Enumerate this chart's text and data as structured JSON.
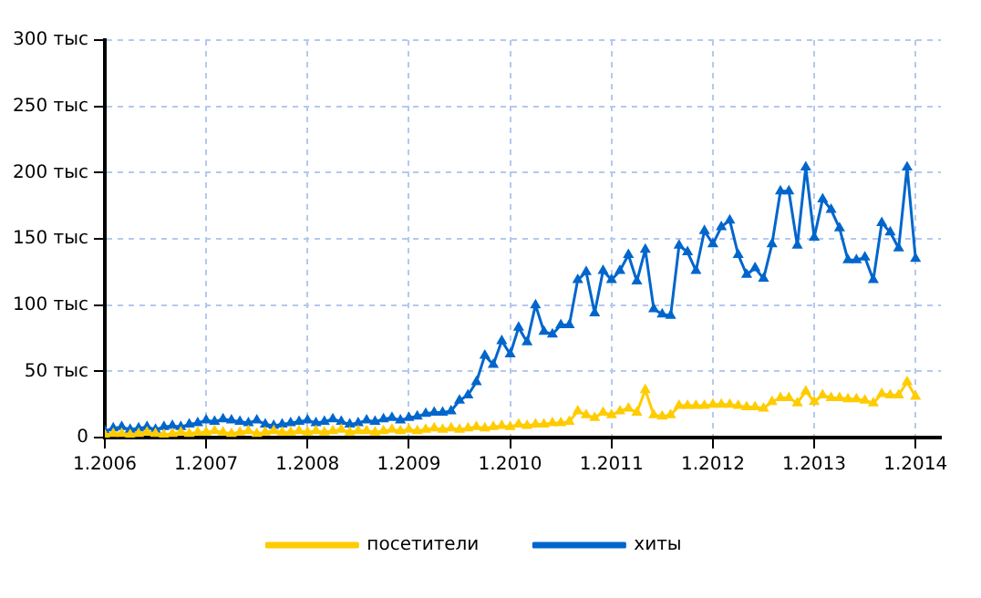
{
  "chart_data": {
    "type": "line",
    "marker": "triangle",
    "line_style": "solid",
    "grid": true,
    "legend": "bottom",
    "xlim": [
      "2006-01",
      "2014-04"
    ],
    "xticks": [
      {
        "value": "2006-01",
        "label": "1.2006"
      },
      {
        "value": "2007-01",
        "label": "1.2007"
      },
      {
        "value": "2008-01",
        "label": "1.2008"
      },
      {
        "value": "2009-01",
        "label": "1.2009"
      },
      {
        "value": "2010-01",
        "label": "1.2010"
      },
      {
        "value": "2011-01",
        "label": "1.2011"
      },
      {
        "value": "2012-01",
        "label": "1.2012"
      },
      {
        "value": "2013-01",
        "label": "1.2013"
      },
      {
        "value": "2014-01",
        "label": "1.2014"
      }
    ],
    "ylim": [
      0,
      300
    ],
    "yticks": [
      {
        "value": 0,
        "label": "0"
      },
      {
        "value": 50,
        "label": "50 тыс"
      },
      {
        "value": 100,
        "label": "100 тыс"
      },
      {
        "value": 150,
        "label": "150 тыс"
      },
      {
        "value": 200,
        "label": "200 тыс"
      },
      {
        "value": 250,
        "label": "250 тыс"
      },
      {
        "value": 300,
        "label": "300 тыс"
      }
    ],
    "x": [
      "2006-01",
      "2006-02",
      "2006-03",
      "2006-04",
      "2006-05",
      "2006-06",
      "2006-07",
      "2006-08",
      "2006-09",
      "2006-10",
      "2006-11",
      "2006-12",
      "2007-01",
      "2007-02",
      "2007-03",
      "2007-04",
      "2007-05",
      "2007-06",
      "2007-07",
      "2007-08",
      "2007-09",
      "2007-10",
      "2007-11",
      "2007-12",
      "2008-01",
      "2008-02",
      "2008-03",
      "2008-04",
      "2008-05",
      "2008-06",
      "2008-07",
      "2008-08",
      "2008-09",
      "2008-10",
      "2008-11",
      "2008-12",
      "2009-01",
      "2009-02",
      "2009-03",
      "2009-04",
      "2009-05",
      "2009-06",
      "2009-07",
      "2009-08",
      "2009-09",
      "2009-10",
      "2009-11",
      "2009-12",
      "2010-01",
      "2010-02",
      "2010-03",
      "2010-04",
      "2010-05",
      "2010-06",
      "2010-07",
      "2010-08",
      "2010-09",
      "2010-10",
      "2010-11",
      "2010-12",
      "2011-01",
      "2011-02",
      "2011-03",
      "2011-04",
      "2011-05",
      "2011-06",
      "2011-07",
      "2011-08",
      "2011-09",
      "2011-10",
      "2011-11",
      "2011-12",
      "2012-01",
      "2012-02",
      "2012-03",
      "2012-04",
      "2012-05",
      "2012-06",
      "2012-07",
      "2012-08",
      "2012-09",
      "2012-10",
      "2012-11",
      "2012-12",
      "2013-01",
      "2013-02",
      "2013-03",
      "2013-04",
      "2013-05",
      "2013-06",
      "2013-07",
      "2013-08",
      "2013-09",
      "2013-10",
      "2013-11",
      "2013-12",
      "2014-01"
    ],
    "series": [
      {
        "name": "посетители",
        "color": "#ffcc00",
        "values": [
          2,
          3,
          3,
          2,
          3,
          4,
          3,
          2,
          3,
          4,
          3,
          4,
          4,
          5,
          4,
          3,
          4,
          5,
          3,
          4,
          5,
          4,
          4,
          5,
          4,
          5,
          4,
          5,
          6,
          4,
          5,
          5,
          4,
          5,
          6,
          5,
          6,
          5,
          6,
          7,
          6,
          7,
          6,
          7,
          8,
          7,
          8,
          9,
          8,
          10,
          9,
          10,
          10,
          11,
          11,
          12,
          20,
          17,
          15,
          19,
          17,
          20,
          22,
          19,
          36,
          17,
          16,
          17,
          24,
          24,
          24,
          24,
          25,
          25,
          25,
          24,
          23,
          23,
          22,
          27,
          30,
          30,
          26,
          35,
          27,
          32,
          30,
          30,
          29,
          29,
          28,
          26,
          33,
          32,
          32,
          42,
          31
        ]
      },
      {
        "name": "хиты",
        "color": "#0066cc",
        "values": [
          5,
          7,
          8,
          6,
          7,
          8,
          6,
          8,
          9,
          8,
          10,
          11,
          13,
          12,
          14,
          13,
          12,
          11,
          13,
          10,
          9,
          10,
          11,
          12,
          13,
          11,
          12,
          14,
          12,
          10,
          11,
          13,
          12,
          14,
          15,
          13,
          15,
          16,
          18,
          19,
          19,
          20,
          28,
          32,
          42,
          62,
          55,
          73,
          63,
          83,
          72,
          100,
          80,
          78,
          85,
          85,
          119,
          125,
          94,
          126,
          119,
          126,
          138,
          118,
          142,
          97,
          93,
          92,
          145,
          140,
          126,
          156,
          146,
          159,
          164,
          138,
          123,
          128,
          120,
          146,
          186,
          186,
          145,
          204,
          151,
          180,
          172,
          158,
          134,
          134,
          136,
          119,
          162,
          155,
          143,
          204,
          135
        ]
      }
    ]
  }
}
